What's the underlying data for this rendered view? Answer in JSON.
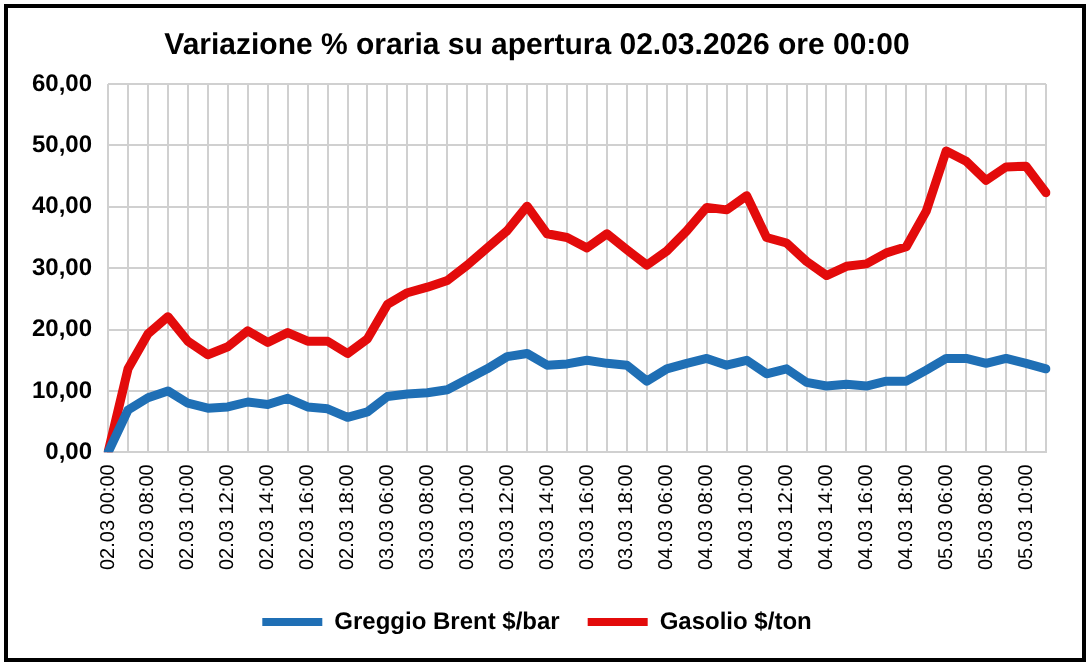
{
  "chart_data": {
    "type": "line",
    "title": "Variazione % oraria su apertura 02.03.2026 ore 00:00",
    "categories": [
      "02.03 00:00",
      null,
      "02.03 08:00",
      null,
      "02.03 10:00",
      null,
      "02.03 12:00",
      null,
      "02.03 14:00",
      null,
      "02.03 16:00",
      null,
      "02.03 18:00",
      null,
      "03.03 06:00",
      null,
      "03.03 08:00",
      null,
      "03.03 10:00",
      null,
      "03.03 12:00",
      null,
      "03.03 14:00",
      null,
      "03.03 16:00",
      null,
      "03.03 18:00",
      null,
      "04.03 06:00",
      null,
      "04.03 08:00",
      null,
      "04.03 10:00",
      null,
      "04.03 12:00",
      null,
      "04.03 14:00",
      null,
      "04.03 16:00",
      null,
      "04.03 18:00",
      null,
      "05.03 06:00",
      null,
      "05.03 08:00",
      null,
      "05.03 10:00",
      null
    ],
    "series": [
      {
        "name": "Greggio Brent $/bar",
        "color": "#1f6fb5",
        "values": [
          0,
          6.9,
          8.9,
          10.0,
          8.0,
          7.2,
          7.4,
          8.2,
          7.8,
          8.8,
          7.4,
          7.1,
          5.7,
          6.6,
          9.1,
          9.5,
          9.7,
          10.2,
          11.9,
          13.6,
          15.6,
          16.1,
          14.2,
          14.4,
          15.0,
          14.5,
          14.2,
          11.6,
          13.6,
          14.5,
          15.3,
          14.2,
          15.0,
          12.8,
          13.6,
          11.4,
          10.8,
          11.1,
          10.8,
          11.6,
          11.6,
          13.4,
          15.3,
          15.3,
          14.5,
          15.3,
          14.5,
          13.6
        ]
      },
      {
        "name": "Gasolio $/ton",
        "color": "#e30b0b",
        "values": [
          0,
          13.6,
          19.3,
          22.1,
          18.1,
          15.9,
          17.2,
          19.8,
          17.9,
          19.5,
          18.1,
          18.1,
          16.1,
          18.5,
          24.1,
          26.0,
          26.9,
          28.0,
          30.5,
          33.3,
          36.1,
          40.1,
          35.6,
          35.0,
          33.3,
          35.6,
          33.0,
          30.5,
          32.8,
          36.1,
          39.9,
          39.5,
          41.8,
          35.0,
          34.1,
          31.1,
          28.8,
          30.3,
          30.7,
          32.5,
          33.5,
          39.3,
          49.1,
          47.4,
          44.3,
          46.5,
          46.6,
          42.3
        ]
      }
    ],
    "ylim": [
      0,
      60
    ],
    "yticks": [
      {
        "value": 0,
        "label": "0,00"
      },
      {
        "value": 10,
        "label": "10,00"
      },
      {
        "value": 20,
        "label": "20,00"
      },
      {
        "value": 30,
        "label": "30,00"
      },
      {
        "value": 40,
        "label": "40,00"
      },
      {
        "value": 50,
        "label": "50,00"
      },
      {
        "value": 60,
        "label": "60,00"
      }
    ],
    "grid": true,
    "legend": "bottom",
    "marker": "none",
    "line_style": "solid"
  }
}
